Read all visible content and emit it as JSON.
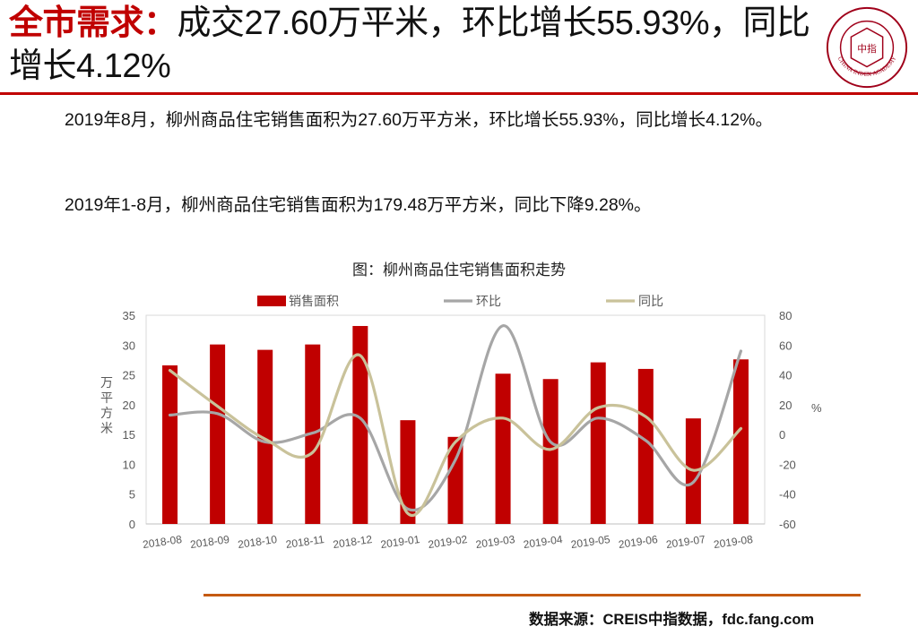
{
  "header": {
    "title_keyword": "全市需求：",
    "title_rest": "成交27.60万平米，环比增长55.93%，同比增长4.12%",
    "logo": {
      "icon": "china-index-academy-seal",
      "center_text": "中指",
      "ring_text": "CHINA INDEX ACADEMY"
    }
  },
  "body": {
    "paragraph_1": "2019年8月，柳州商品住宅销售面积为27.60万平方米，环比增长55.93%，同比增长4.12%。",
    "paragraph_2": "2019年1-8月，柳州商品住宅销售面积为179.48万平方米，同比下降9.28%。"
  },
  "chart_data": {
    "type": "bar",
    "title": "图：柳州商品住宅销售面积走势",
    "categories": [
      "2018-08",
      "2018-09",
      "2018-10",
      "2018-11",
      "2018-12",
      "2019-01",
      "2019-02",
      "2019-03",
      "2019-04",
      "2019-05",
      "2019-06",
      "2019-07",
      "2019-08"
    ],
    "ylabel": "万平方米",
    "ylim": [
      0,
      35
    ],
    "yticks": [
      0,
      5,
      10,
      15,
      20,
      25,
      30,
      35
    ],
    "y2label": "%",
    "y2lim": [
      -60,
      80
    ],
    "y2ticks": [
      -60,
      -40,
      -20,
      0,
      20,
      40,
      60,
      80
    ],
    "legend_position": "top",
    "grid": false,
    "series": [
      {
        "name": "销售面积",
        "type": "bar",
        "axis": "left",
        "color": "#c00000",
        "values": [
          26.6,
          30.1,
          29.2,
          30.1,
          33.2,
          17.4,
          14.6,
          25.2,
          24.3,
          27.1,
          26.0,
          17.7,
          27.6
        ]
      },
      {
        "name": "环比",
        "type": "line",
        "axis": "right",
        "color": "#a6a6a6",
        "values": [
          13,
          14,
          -5,
          1,
          11,
          -50,
          -17,
          73,
          -5,
          11,
          -4,
          -32,
          56
        ]
      },
      {
        "name": "同比",
        "type": "line",
        "axis": "right",
        "color": "#c9c29a",
        "values": [
          43,
          19,
          -3,
          -12,
          53,
          -53,
          -5,
          11,
          -10,
          18,
          12,
          -24,
          4
        ]
      }
    ]
  },
  "footer": {
    "source": "数据来源：CREIS中指数据，fdc.fang.com"
  }
}
